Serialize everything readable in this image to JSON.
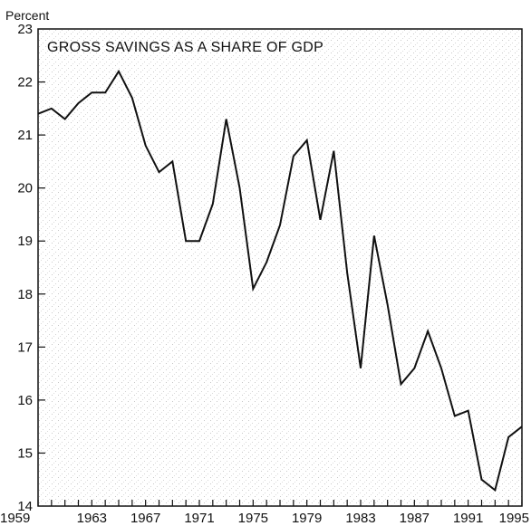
{
  "chart_data": {
    "type": "line",
    "title": "GROSS SAVINGS AS A SHARE OF GDP",
    "ylabel": "Percent",
    "xlabel": "",
    "xlim": [
      1959,
      1995
    ],
    "ylim": [
      14,
      23
    ],
    "x_ticks": [
      1959,
      1963,
      1967,
      1971,
      1975,
      1979,
      1983,
      1987,
      1991,
      1995
    ],
    "y_ticks": [
      14,
      15,
      16,
      17,
      18,
      19,
      20,
      21,
      22,
      23
    ],
    "grid": false,
    "series": [
      {
        "x": [
          1959,
          1960,
          1961,
          1962,
          1963,
          1964,
          1965,
          1966,
          1967,
          1968,
          1969,
          1970,
          1971,
          1972,
          1973,
          1974,
          1975,
          1976,
          1977,
          1978,
          1979,
          1980,
          1981,
          1982,
          1983,
          1984,
          1985,
          1986,
          1987,
          1988,
          1989,
          1990,
          1991,
          1992,
          1993,
          1994,
          1995
        ],
        "values": [
          21.4,
          21.5,
          21.3,
          21.6,
          21.8,
          21.8,
          22.2,
          21.7,
          20.8,
          20.3,
          20.5,
          19.0,
          19.0,
          19.7,
          21.3,
          20.0,
          18.1,
          18.6,
          19.3,
          20.6,
          20.9,
          19.4,
          20.7,
          18.4,
          16.6,
          19.1,
          17.8,
          16.3,
          16.6,
          17.3,
          16.6,
          15.7,
          15.8,
          14.5,
          14.3,
          15.3,
          15.5
        ]
      }
    ]
  }
}
